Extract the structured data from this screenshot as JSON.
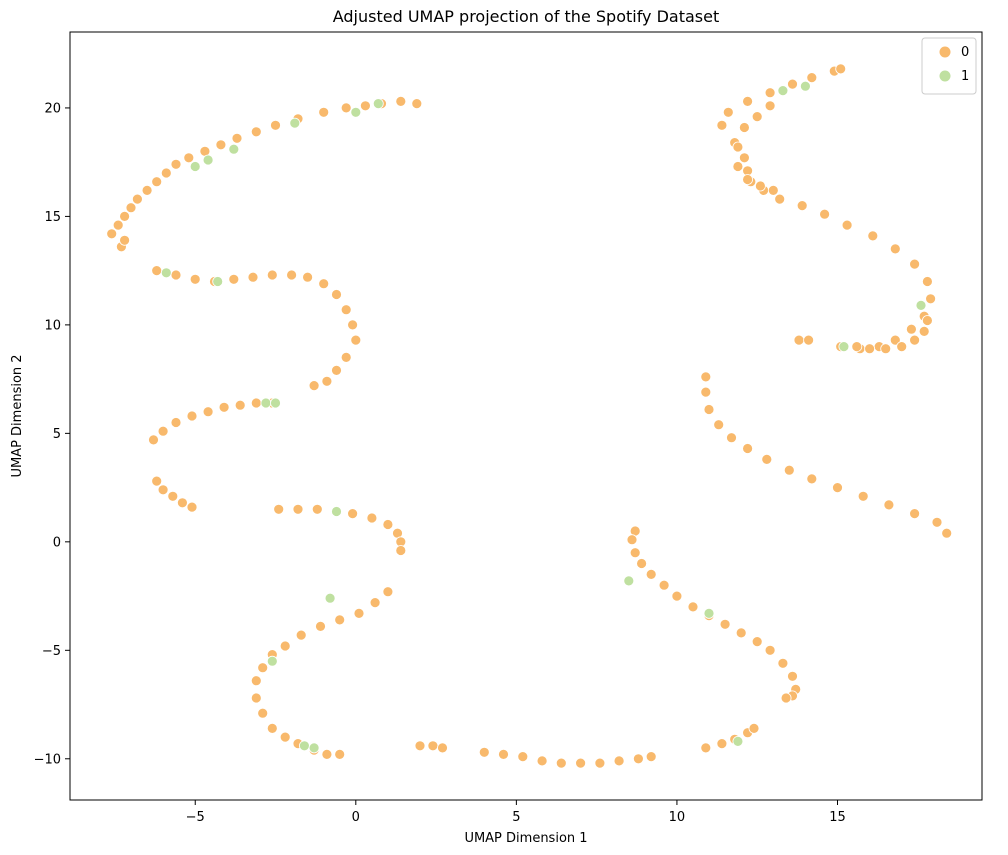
{
  "chart_data": {
    "type": "scatter",
    "title": "Adjusted UMAP projection of the Spotify Dataset",
    "xlabel": "UMAP Dimension 1",
    "ylabel": "UMAP Dimension 2",
    "xlim": [
      -8.9,
      19.5
    ],
    "ylim": [
      -11.9,
      23.5
    ],
    "xticks": [
      -5,
      0,
      5,
      10,
      15
    ],
    "yticks": [
      -10,
      -5,
      0,
      5,
      10,
      15,
      20
    ],
    "xticklabels": [
      "−5",
      "0",
      "5",
      "10",
      "15"
    ],
    "yticklabels": [
      "−10",
      "−5",
      "0",
      "5",
      "10",
      "15",
      "20"
    ],
    "grid": false,
    "legend": {
      "placement": "top-right",
      "entries": [
        "0",
        "1"
      ]
    },
    "colors": {
      "0": "#f8b96c",
      "1": "#bfe0a0"
    },
    "series": [
      {
        "name": "0",
        "x": [
          -7.6,
          -7.4,
          -7.2,
          -7.0,
          -6.8,
          -6.5,
          -6.2,
          -5.9,
          -5.6,
          -5.2,
          -4.7,
          -4.2,
          -3.7,
          -3.1,
          -2.5,
          -1.8,
          -1.0,
          -0.3,
          0.3,
          0.8,
          1.4,
          1.9,
          -7.3,
          -7.2,
          -6.2,
          -5.6,
          -5.0,
          -4.4,
          -3.8,
          -3.2,
          -2.6,
          -2.0,
          -1.5,
          -1.0,
          -0.6,
          -0.3,
          -0.1,
          0.0,
          -0.3,
          -0.6,
          -0.9,
          -1.3,
          -6.3,
          -6.0,
          -5.6,
          -5.1,
          -4.6,
          -4.1,
          -3.6,
          -3.1,
          -2.6,
          -6.2,
          -6.0,
          -5.7,
          -5.4,
          -5.1,
          -2.4,
          -1.8,
          -1.2,
          -0.6,
          -0.1,
          0.5,
          1.0,
          1.3,
          1.4,
          1.4,
          1.0,
          0.6,
          0.1,
          -0.5,
          -1.1,
          -1.7,
          -2.2,
          -2.6,
          -2.9,
          -3.1,
          -3.1,
          -2.9,
          -2.6,
          -2.2,
          -1.8,
          -1.3,
          -0.9,
          -0.5,
          2.0,
          2.4,
          2.7,
          4.0,
          4.6,
          5.2,
          5.8,
          6.4,
          7.0,
          7.6,
          8.2,
          8.8,
          9.2,
          10.9,
          11.4,
          11.8,
          12.2,
          12.4,
          8.7,
          8.6,
          8.7,
          8.9,
          9.2,
          9.6,
          10.0,
          10.5,
          11.0,
          11.5,
          12.0,
          12.5,
          12.9,
          13.3,
          13.6,
          13.7,
          13.6,
          13.4,
          15.1,
          15.7,
          16.3,
          16.8,
          17.3,
          17.7,
          17.9,
          17.8,
          17.4,
          16.8,
          16.1,
          15.3,
          14.6,
          13.9,
          13.2,
          12.7,
          12.3,
          12.2,
          12.1,
          11.8,
          11.4,
          11.6,
          12.2,
          12.9,
          13.6,
          14.2,
          14.9,
          15.1,
          13.8,
          14.1,
          10.9,
          10.9,
          11.0,
          11.3,
          11.7,
          12.2,
          12.8,
          13.5,
          14.2,
          15.0,
          15.8,
          16.6,
          17.4,
          18.1,
          18.4,
          15.6,
          16.0,
          16.5,
          17.0,
          17.4,
          17.7,
          17.8,
          13.0,
          12.6,
          12.2,
          11.9,
          11.9,
          12.1,
          12.5,
          12.9
        ],
        "y": [
          14.2,
          14.6,
          15.0,
          15.4,
          15.8,
          16.2,
          16.6,
          17.0,
          17.4,
          17.7,
          18.0,
          18.3,
          18.6,
          18.9,
          19.2,
          19.5,
          19.8,
          20.0,
          20.1,
          20.2,
          20.3,
          20.2,
          13.6,
          13.9,
          12.5,
          12.3,
          12.1,
          12.0,
          12.1,
          12.2,
          12.3,
          12.3,
          12.2,
          11.9,
          11.4,
          10.7,
          10.0,
          9.3,
          8.5,
          7.9,
          7.4,
          7.2,
          4.7,
          5.1,
          5.5,
          5.8,
          6.0,
          6.2,
          6.3,
          6.4,
          6.4,
          2.8,
          2.4,
          2.1,
          1.8,
          1.6,
          1.5,
          1.5,
          1.5,
          1.4,
          1.3,
          1.1,
          0.8,
          0.4,
          0.0,
          -0.4,
          -2.3,
          -2.8,
          -3.3,
          -3.6,
          -3.9,
          -4.3,
          -4.8,
          -5.2,
          -5.8,
          -6.4,
          -7.2,
          -7.9,
          -8.6,
          -9.0,
          -9.3,
          -9.6,
          -9.8,
          -9.8,
          -9.4,
          -9.4,
          -9.5,
          -9.7,
          -9.8,
          -9.9,
          -10.1,
          -10.2,
          -10.2,
          -10.2,
          -10.1,
          -10.0,
          -9.9,
          -9.5,
          -9.3,
          -9.1,
          -8.8,
          -8.6,
          0.5,
          0.1,
          -0.5,
          -1.0,
          -1.5,
          -2.0,
          -2.5,
          -3.0,
          -3.4,
          -3.8,
          -4.2,
          -4.6,
          -5.0,
          -5.6,
          -6.2,
          -6.8,
          -7.1,
          -7.2,
          9.0,
          8.9,
          9.0,
          9.3,
          9.8,
          10.4,
          11.2,
          12.0,
          12.8,
          13.5,
          14.1,
          14.6,
          15.1,
          15.5,
          15.8,
          16.2,
          16.6,
          17.1,
          17.7,
          18.4,
          19.2,
          19.8,
          20.3,
          20.7,
          21.1,
          21.4,
          21.7,
          21.8,
          9.3,
          9.3,
          7.6,
          6.9,
          6.1,
          5.4,
          4.8,
          4.3,
          3.8,
          3.3,
          2.9,
          2.5,
          2.1,
          1.7,
          1.3,
          0.9,
          0.4,
          9.0,
          8.9,
          8.9,
          9.0,
          9.3,
          9.7,
          10.2,
          16.2,
          16.4,
          16.7,
          17.3,
          18.2,
          19.1,
          19.6,
          20.1
        ]
      },
      {
        "name": "1",
        "x": [
          -5.0,
          -4.6,
          -3.8,
          -1.9,
          0.0,
          0.7,
          -5.9,
          -4.3,
          -2.8,
          -2.5,
          -0.6,
          -0.8,
          -2.6,
          -1.6,
          -1.3,
          8.5,
          11.0,
          11.9,
          13.3,
          14.0,
          15.2,
          17.6
        ],
        "y": [
          17.3,
          17.6,
          18.1,
          19.3,
          19.8,
          20.2,
          12.4,
          12.0,
          6.4,
          6.4,
          1.4,
          -2.6,
          -5.5,
          -9.4,
          -9.5,
          -1.8,
          -3.3,
          -9.2,
          20.8,
          21.0,
          9.0,
          10.9
        ]
      }
    ]
  }
}
